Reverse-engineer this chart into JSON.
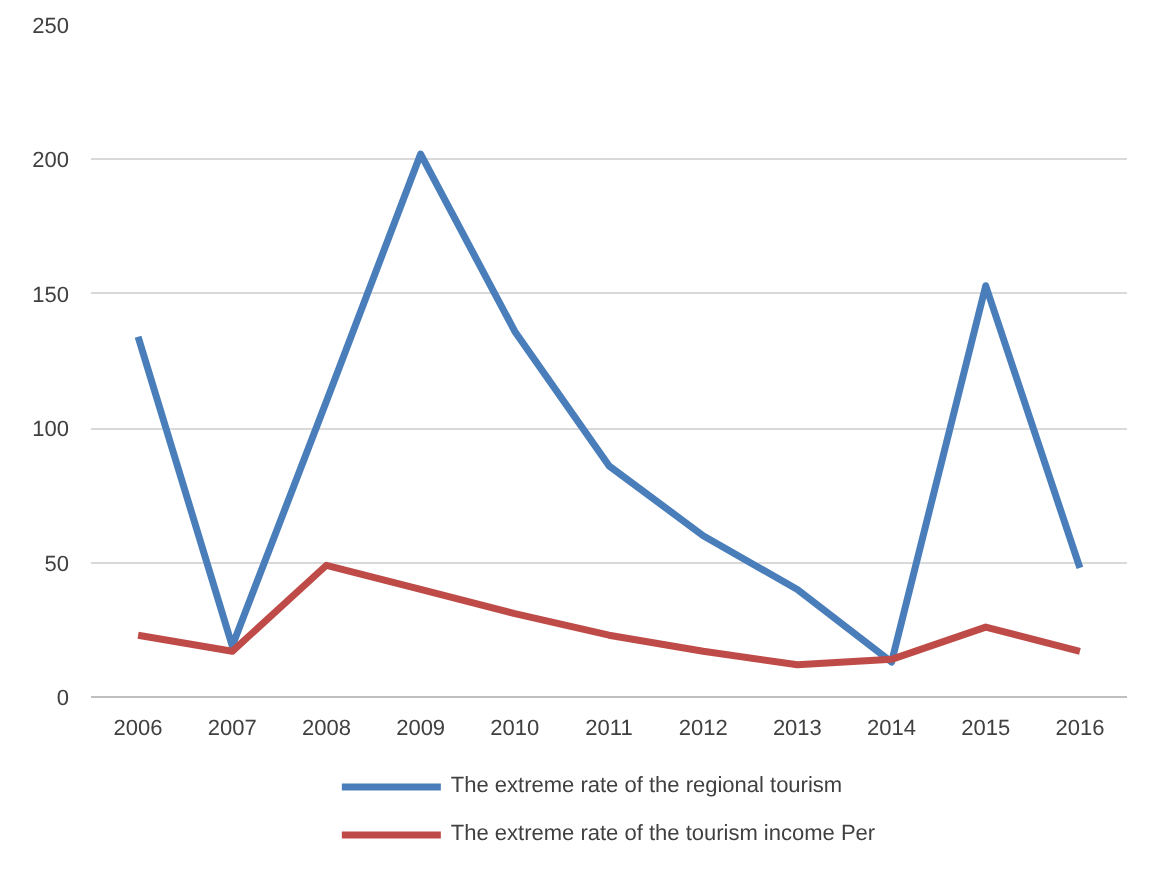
{
  "chart_data": {
    "type": "line",
    "categories": [
      "2006",
      "2007",
      "2008",
      "2009",
      "2010",
      "2011",
      "2012",
      "2013",
      "2014",
      "2015",
      "2016"
    ],
    "series": [
      {
        "name": "The extreme rate of the regional tourism",
        "color": "#4a7ebb",
        "values": [
          134,
          19,
          110,
          202,
          136,
          86,
          60,
          40,
          13,
          153,
          48
        ]
      },
      {
        "name": "The extreme rate of the tourism income Per",
        "color": "#be4b48",
        "values": [
          23,
          17,
          49,
          40,
          31,
          23,
          17,
          12,
          14,
          26,
          17
        ]
      }
    ],
    "ylim": [
      0,
      250
    ],
    "yticks": [
      0,
      50,
      100,
      150,
      200,
      250
    ],
    "grid": "y",
    "legend": "bottom",
    "marker": "none",
    "line_style": "solid"
  }
}
